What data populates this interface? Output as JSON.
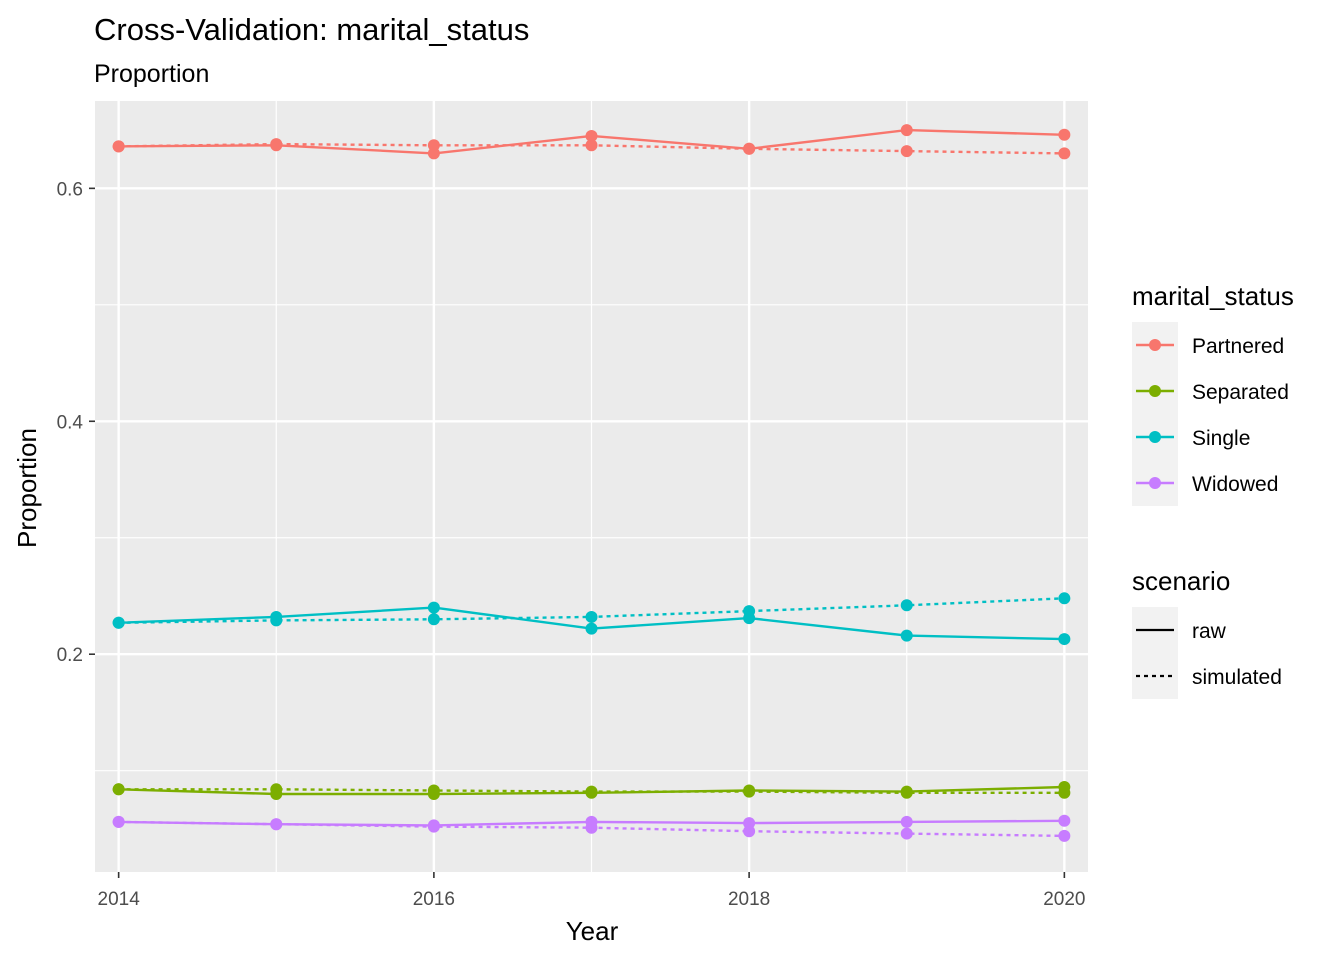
{
  "chart_data": {
    "type": "line",
    "title": "Cross-Validation: marital_status",
    "subtitle": "Proportion",
    "xlabel": "Year",
    "ylabel": "Proportion",
    "x": [
      2014,
      2015,
      2016,
      2017,
      2018,
      2019,
      2020
    ],
    "x_ticks": [
      "2014",
      "2016",
      "2018",
      "2020"
    ],
    "y_ticks": [
      "0.2",
      "0.4",
      "0.6"
    ],
    "xlim": [
      2013.85,
      2020.15
    ],
    "ylim": [
      0.013,
      0.675
    ],
    "grid": true,
    "legend_placement": "right",
    "legends": [
      {
        "title": "marital_status",
        "entries": [
          "Partnered",
          "Separated",
          "Single",
          "Widowed"
        ]
      },
      {
        "title": "scenario",
        "entries": [
          "raw",
          "simulated"
        ]
      }
    ],
    "colors": {
      "Partnered": "#F8766D",
      "Separated": "#7CAE00",
      "Single": "#00BFC4",
      "Widowed": "#C77CFF",
      "panel": "#EBEBEB",
      "grid": "#FFFFFF"
    },
    "series": [
      {
        "group": "Partnered",
        "scenario": "raw",
        "values": [
          0.636,
          0.637,
          0.63,
          0.645,
          0.634,
          0.65,
          0.646
        ]
      },
      {
        "group": "Partnered",
        "scenario": "simulated",
        "values": [
          0.636,
          0.638,
          0.637,
          0.637,
          0.634,
          0.632,
          0.63
        ]
      },
      {
        "group": "Separated",
        "scenario": "raw",
        "values": [
          0.084,
          0.08,
          0.08,
          0.081,
          0.083,
          0.082,
          0.086
        ]
      },
      {
        "group": "Separated",
        "scenario": "simulated",
        "values": [
          0.084,
          0.084,
          0.083,
          0.082,
          0.082,
          0.081,
          0.081
        ]
      },
      {
        "group": "Single",
        "scenario": "raw",
        "values": [
          0.227,
          0.232,
          0.24,
          0.222,
          0.231,
          0.216,
          0.213
        ]
      },
      {
        "group": "Single",
        "scenario": "simulated",
        "values": [
          0.227,
          0.229,
          0.23,
          0.232,
          0.237,
          0.242,
          0.248
        ]
      },
      {
        "group": "Widowed",
        "scenario": "raw",
        "values": [
          0.056,
          0.054,
          0.053,
          0.056,
          0.055,
          0.056,
          0.057
        ]
      },
      {
        "group": "Widowed",
        "scenario": "simulated",
        "values": [
          0.056,
          0.054,
          0.052,
          0.051,
          0.048,
          0.046,
          0.044
        ]
      }
    ]
  }
}
